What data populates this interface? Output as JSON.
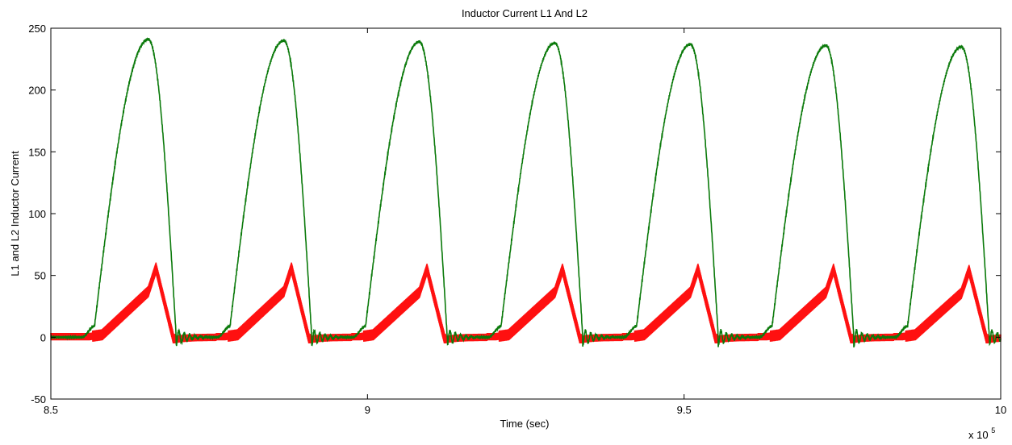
{
  "chart_data": {
    "type": "line",
    "title": "Inductor Current L1 And L2",
    "xlabel": "Time (sec)",
    "ylabel": "L1 and L2 Inductor Current",
    "x_multiplier": "x 10",
    "x_multiplier_exp": "5",
    "xlim": [
      8.5,
      10
    ],
    "ylim": [
      -50,
      250
    ],
    "xticks": [
      "8.5",
      "9",
      "9.5",
      "10"
    ],
    "xtick_values": [
      8.5,
      9.0,
      9.5,
      10.0
    ],
    "yticks": [
      "-50",
      "0",
      "50",
      "100",
      "150",
      "200",
      "250"
    ],
    "ytick_values": [
      -50,
      0,
      50,
      100,
      150,
      200,
      250
    ],
    "grid": false,
    "legend": "none",
    "period": 0.2143,
    "series": [
      {
        "color": "#0b7a0b",
        "peaks": [
          {
            "t": 8.654,
            "value": 241
          },
          {
            "t": 8.868,
            "value": 240
          },
          {
            "t": 9.082,
            "value": 239
          },
          {
            "t": 9.296,
            "value": 238
          },
          {
            "t": 9.51,
            "value": 237
          },
          {
            "t": 9.724,
            "value": 236
          },
          {
            "t": 9.938,
            "value": 235
          }
        ],
        "min_value": -8
      },
      {
        "color": "#ff1010",
        "peaks": [
          {
            "t": 8.666,
            "value": 56
          },
          {
            "t": 8.88,
            "value": 56
          },
          {
            "t": 9.094,
            "value": 55
          },
          {
            "t": 9.308,
            "value": 55
          },
          {
            "t": 9.522,
            "value": 55
          },
          {
            "t": 9.736,
            "value": 55
          },
          {
            "t": 9.95,
            "value": 54
          }
        ],
        "min_value": -5
      }
    ]
  }
}
